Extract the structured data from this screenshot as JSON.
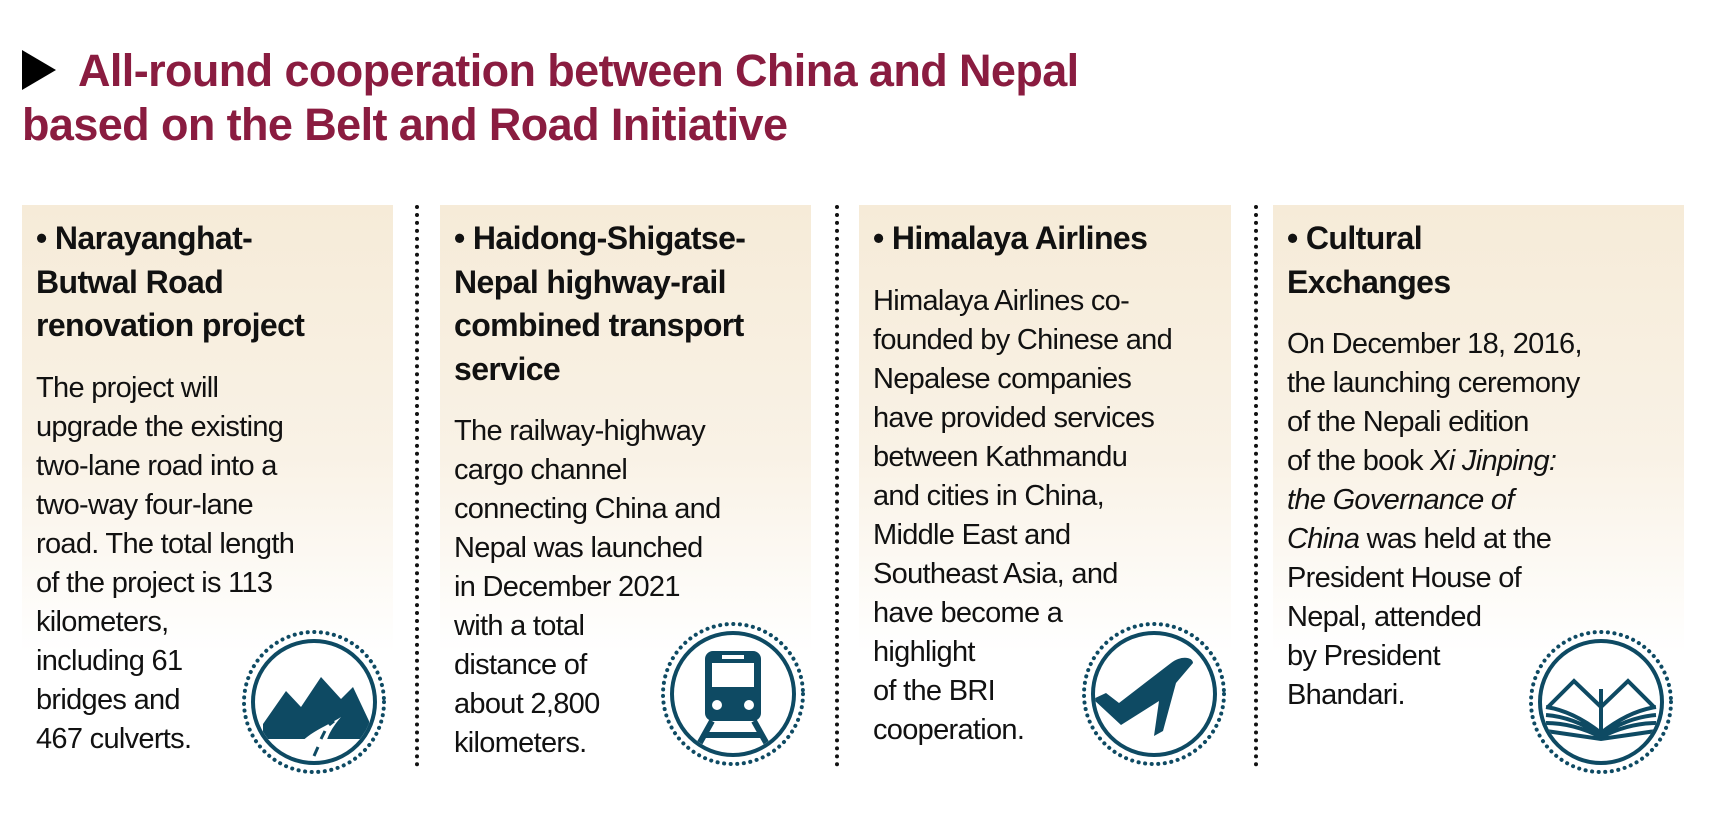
{
  "title": {
    "line1": "All-round cooperation between China and Nepal",
    "line2": "based on the Belt and Road Initiative",
    "color": "#8a1c40"
  },
  "icon_color": "#0e4a63",
  "cards": [
    {
      "heading": [
        "• Narayanghat-",
        "Butwal Road",
        "renovation project"
      ],
      "body": [
        [
          {
            "t": "The project will"
          }
        ],
        [
          {
            "t": "upgrade the existing"
          }
        ],
        [
          {
            "t": "two-lane road into a"
          }
        ],
        [
          {
            "t": "two-way four-lane"
          }
        ],
        [
          {
            "t": "road. The total length"
          }
        ],
        [
          {
            "t": "of the project is 113"
          }
        ],
        [
          {
            "t": "kilometers,"
          }
        ],
        [
          {
            "t": "including 61"
          }
        ],
        [
          {
            "t": "bridges and"
          }
        ],
        [
          {
            "t": "467 culverts."
          }
        ]
      ],
      "icon": "mountain-road-icon"
    },
    {
      "heading": [
        "• Haidong-Shigatse-",
        "Nepal highway-rail",
        "combined transport",
        "service"
      ],
      "body": [
        [
          {
            "t": "The railway-highway"
          }
        ],
        [
          {
            "t": "cargo channel"
          }
        ],
        [
          {
            "t": "connecting China and"
          }
        ],
        [
          {
            "t": "Nepal was launched"
          }
        ],
        [
          {
            "t": "in December 2021"
          }
        ],
        [
          {
            "t": "with a total"
          }
        ],
        [
          {
            "t": "distance of"
          }
        ],
        [
          {
            "t": "about 2,800"
          }
        ],
        [
          {
            "t": "kilometers."
          }
        ]
      ],
      "icon": "train-icon"
    },
    {
      "heading": [
        "• Himalaya Airlines"
      ],
      "body": [
        [
          {
            "t": "Himalaya Airlines co-"
          }
        ],
        [
          {
            "t": "founded by Chinese and"
          }
        ],
        [
          {
            "t": "Nepalese companies"
          }
        ],
        [
          {
            "t": "have provided services"
          }
        ],
        [
          {
            "t": "between Kathmandu"
          }
        ],
        [
          {
            "t": "and cities in China,"
          }
        ],
        [
          {
            "t": "Middle East and"
          }
        ],
        [
          {
            "t": "Southeast Asia, and"
          }
        ],
        [
          {
            "t": "have become a"
          }
        ],
        [
          {
            "t": "highlight"
          }
        ],
        [
          {
            "t": "of the BRI"
          }
        ],
        [
          {
            "t": "cooperation."
          }
        ]
      ],
      "icon": "airplane-icon"
    },
    {
      "heading": [
        "• Cultural",
        "Exchanges"
      ],
      "body": [
        [
          {
            "t": "On December 18, 2016,"
          }
        ],
        [
          {
            "t": "the launching ceremony"
          }
        ],
        [
          {
            "t": "of the Nepali edition"
          }
        ],
        [
          {
            "t": "of the book "
          },
          {
            "t": "Xi Jinping:",
            "i": true
          }
        ],
        [
          {
            "t": "the Governance of",
            "i": true
          }
        ],
        [
          {
            "t": "China",
            "i": true
          },
          {
            "t": " was held at the"
          }
        ],
        [
          {
            "t": "President House of"
          }
        ],
        [
          {
            "t": "Nepal, attended"
          }
        ],
        [
          {
            "t": "by President"
          }
        ],
        [
          {
            "t": "Bhandari."
          }
        ]
      ],
      "icon": "open-book-icon"
    }
  ]
}
